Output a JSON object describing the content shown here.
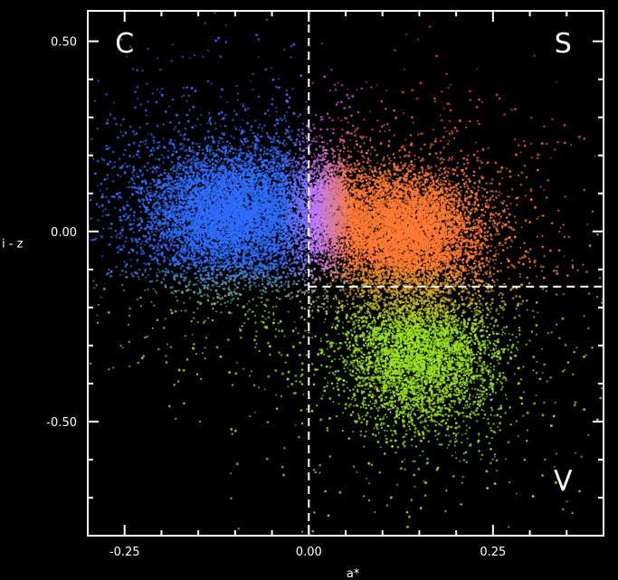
{
  "chart_data": {
    "type": "scatter",
    "title": "",
    "xlabel": "a*",
    "ylabel": "i - z",
    "xlim": [
      -0.3,
      0.4
    ],
    "ylim": [
      -0.8,
      0.58
    ],
    "x_ticks": [
      -0.25,
      0.0,
      0.25
    ],
    "x_tick_labels": [
      "-0.25",
      "0.00",
      "0.25"
    ],
    "y_ticks": [
      0.5,
      0.0,
      -0.5
    ],
    "y_tick_labels": [
      "0.50",
      "0.00",
      "-0.50"
    ],
    "grid": false,
    "background": "#000000",
    "region_labels": [
      {
        "text": "C",
        "x": -0.25,
        "y": 0.47
      },
      {
        "text": "S",
        "x": 0.345,
        "y": 0.47
      },
      {
        "text": "V",
        "x": 0.345,
        "y": -0.68
      }
    ],
    "dividers": [
      {
        "type": "vertical",
        "x": 0.0,
        "y_from": -0.8,
        "y_to": 0.58
      },
      {
        "type": "horizontal",
        "y": -0.145,
        "x_from": 0.0,
        "x_to": 0.4
      }
    ],
    "series": [
      {
        "center": [
          -0.1,
          0.05
        ],
        "spread": [
          0.06,
          0.085
        ],
        "color": "#2f6dff"
      },
      {
        "center": [
          0.13,
          0.0
        ],
        "spread": [
          0.05,
          0.075
        ],
        "color": "#ff7a33"
      },
      {
        "center": [
          0.15,
          -0.32
        ],
        "spread": [
          0.05,
          0.095
        ],
        "color": "#9be11f"
      },
      {
        "center": [
          0.03,
          0.06
        ],
        "spread": [
          0.02,
          0.06
        ],
        "color": "#c27bff"
      }
    ]
  }
}
